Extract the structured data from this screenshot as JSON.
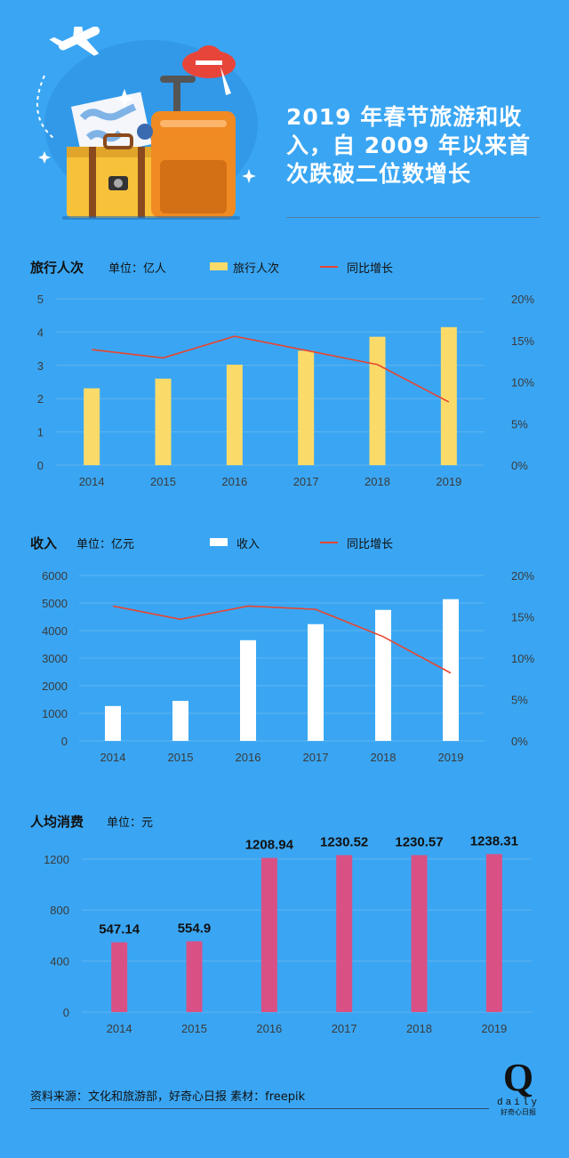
{
  "title": "2019 年春节旅游和收入，自 2009 年以来首次跌破二位数增长",
  "charts": {
    "travel": {
      "title": "旅行人次",
      "unit": "单位：亿人",
      "legend_bar": "旅行人次",
      "legend_line": "同比增长",
      "bar_color": "#fadb6a",
      "line_color": "#e8452f"
    },
    "revenue": {
      "title": "收入",
      "unit": "单位：亿元",
      "legend_bar": "收入",
      "legend_line": "同比增长",
      "bar_color": "#ffffff",
      "line_color": "#e8452f"
    },
    "spend": {
      "title": "人均消费",
      "unit": "单位：元",
      "bar_color": "#d95184"
    }
  },
  "chart_data": [
    {
      "type": "bar",
      "categories": [
        "2014",
        "2015",
        "2016",
        "2017",
        "2018",
        "2019"
      ],
      "series": [
        {
          "name": "旅行人次",
          "type": "bar",
          "axis": "left",
          "values": [
            2.31,
            2.6,
            3.02,
            3.44,
            3.86,
            4.15
          ]
        },
        {
          "name": "同比增长",
          "type": "line",
          "axis": "right",
          "values": [
            13.9,
            12.9,
            15.5,
            13.8,
            12.1,
            7.6
          ]
        }
      ],
      "ylim": [
        0,
        5
      ],
      "yticks": [
        "0",
        "1",
        "2",
        "3",
        "4",
        "5"
      ],
      "y2lim": [
        0,
        20
      ],
      "y2ticks": [
        "0%",
        "5%",
        "10%",
        "15%",
        "20%"
      ],
      "grid": true,
      "legend": "top"
    },
    {
      "type": "bar",
      "categories": [
        "2014",
        "2015",
        "2016",
        "2017",
        "2018",
        "2019"
      ],
      "series": [
        {
          "name": "收入",
          "type": "bar",
          "axis": "left",
          "values": [
            1263,
            1451,
            3651,
            4233,
            4750,
            5139
          ]
        },
        {
          "name": "同比增长",
          "type": "line",
          "axis": "right",
          "values": [
            16.3,
            14.7,
            16.3,
            15.9,
            12.6,
            8.2
          ]
        }
      ],
      "ylim": [
        0,
        6000
      ],
      "yticks": [
        "0",
        "1000",
        "2000",
        "3000",
        "4000",
        "5000",
        "6000"
      ],
      "y2lim": [
        0,
        20
      ],
      "y2ticks": [
        "0%",
        "5%",
        "10%",
        "15%",
        "20%"
      ],
      "grid": true,
      "legend": "top"
    },
    {
      "type": "bar",
      "categories": [
        "2014",
        "2015",
        "2016",
        "2017",
        "2018",
        "2019"
      ],
      "values": [
        547.14,
        554.9,
        1208.94,
        1230.52,
        1230.57,
        1238.31
      ],
      "labels": [
        "547.14",
        "554.9",
        "1208.94",
        "1230.52",
        "1230.57",
        "1238.31"
      ],
      "ylim": [
        0,
        1380
      ],
      "yticks": [
        "0",
        "400",
        "800",
        "1200"
      ],
      "ytick_values": [
        0,
        400,
        800,
        1200
      ],
      "grid": true
    }
  ],
  "footer": "资料来源：文化和旅游部，好奇心日报    素材：freepik",
  "logo": {
    "mark": "Q",
    "word": "daily",
    "cn": "好奇心日报"
  }
}
